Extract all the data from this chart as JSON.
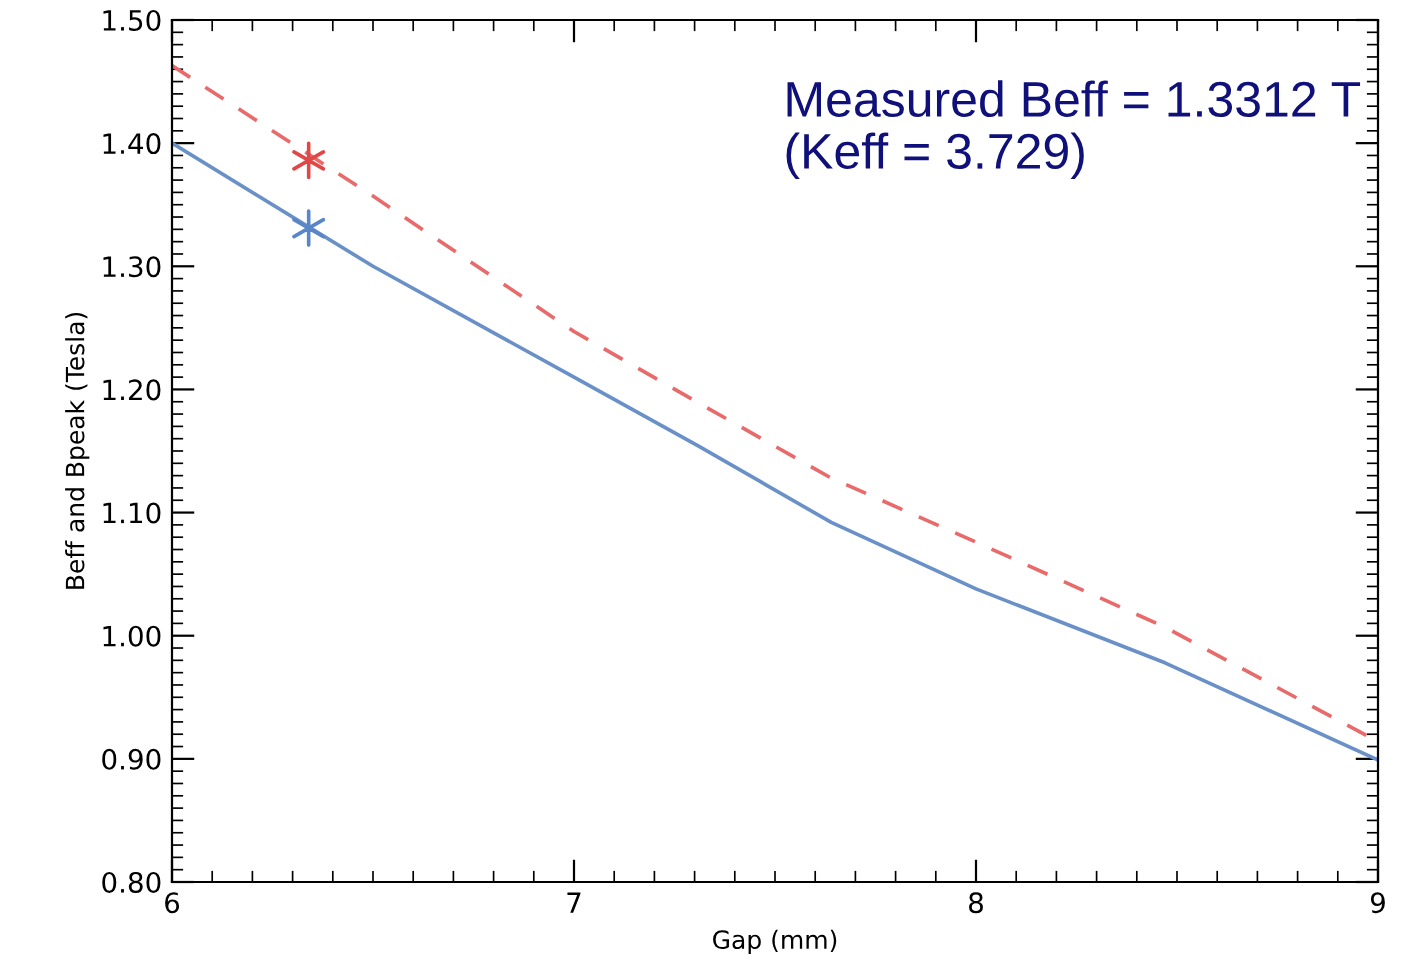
{
  "chart_data": {
    "type": "line",
    "xlabel": "Gap (mm)",
    "ylabel": "Beff and Bpeak (Tesla)",
    "xlim": [
      6,
      9
    ],
    "xticks": [
      6,
      7,
      8,
      9
    ],
    "ylim": [
      0.8,
      1.5
    ],
    "yticks": [
      {
        "value": 0.8,
        "label": "0.80"
      },
      {
        "value": 0.9,
        "label": "0.90"
      },
      {
        "value": 1.0,
        "label": "1.00"
      },
      {
        "value": 1.1,
        "label": "1.10"
      },
      {
        "value": 1.2,
        "label": "1.20"
      },
      {
        "value": 1.3,
        "label": "1.30"
      },
      {
        "value": 1.4,
        "label": "1.40"
      },
      {
        "value": 1.5,
        "label": "1.50"
      }
    ],
    "grid": false,
    "series": [
      {
        "color": "#6a90c8",
        "line_style": "solid",
        "x": [
          6,
          6.5,
          7,
          7.31,
          7.64,
          8,
          8.47,
          9
        ],
        "values": [
          1.4,
          1.3,
          1.21,
          1.154,
          1.092,
          1.038,
          0.978,
          0.899
        ]
      },
      {
        "color": "#e86a6a",
        "line_style": "dashed",
        "x": [
          6,
          6.5,
          7,
          7.31,
          7.64,
          8,
          8.47,
          9
        ],
        "values": [
          1.463,
          1.357,
          1.247,
          1.189,
          1.128,
          1.076,
          1.007,
          0.914
        ]
      },
      {
        "type": "scatter",
        "color": "#5a86c8",
        "marker": "cross",
        "x": [
          6.34
        ],
        "values": [
          1.331
        ]
      },
      {
        "type": "scatter",
        "color": "#e04848",
        "marker": "cross",
        "x": [
          6.34
        ],
        "values": [
          1.386
        ]
      }
    ],
    "annotations": [
      "Measured Beff = 1.3312 T\n(Keff = 3.729)"
    ]
  }
}
